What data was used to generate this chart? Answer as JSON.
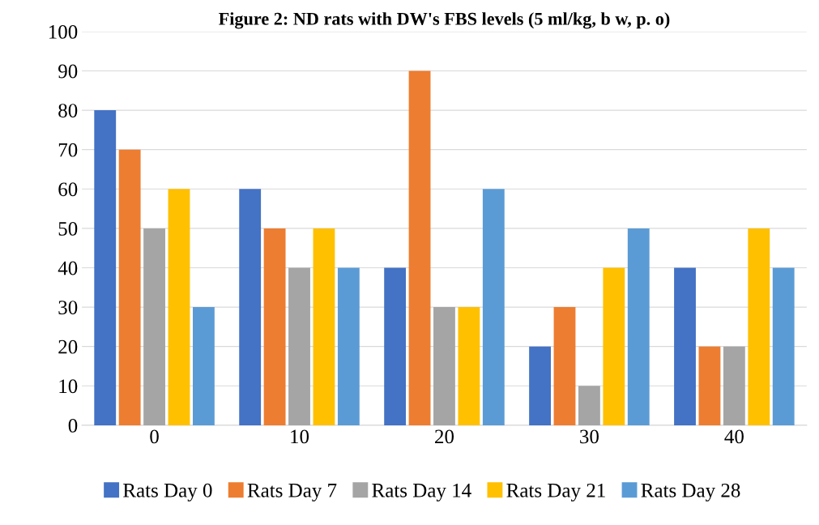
{
  "chart_data": {
    "type": "bar",
    "title": "Figure 2: ND rats with DW's FBS levels (5 ml/kg, b w, p. o)",
    "categories": [
      "0",
      "10",
      "20",
      "30",
      "40"
    ],
    "series": [
      {
        "name": "Rats Day 0",
        "color": "#4472c4",
        "values": [
          80,
          60,
          40,
          20,
          40
        ]
      },
      {
        "name": "Rats Day 7",
        "color": "#ed7d31",
        "values": [
          70,
          50,
          90,
          30,
          20
        ]
      },
      {
        "name": "Rats Day 14",
        "color": "#a5a5a5",
        "values": [
          50,
          40,
          30,
          10,
          20
        ]
      },
      {
        "name": "Rats Day 21",
        "color": "#ffc000",
        "values": [
          60,
          50,
          30,
          40,
          50
        ]
      },
      {
        "name": "Rats Day 28",
        "color": "#5b9bd5",
        "values": [
          30,
          40,
          60,
          50,
          40
        ]
      }
    ],
    "ylim": [
      0,
      100
    ],
    "yticks": [
      0,
      10,
      20,
      30,
      40,
      50,
      60,
      70,
      80,
      90,
      100
    ],
    "grid": "y",
    "legend": "bottom"
  }
}
